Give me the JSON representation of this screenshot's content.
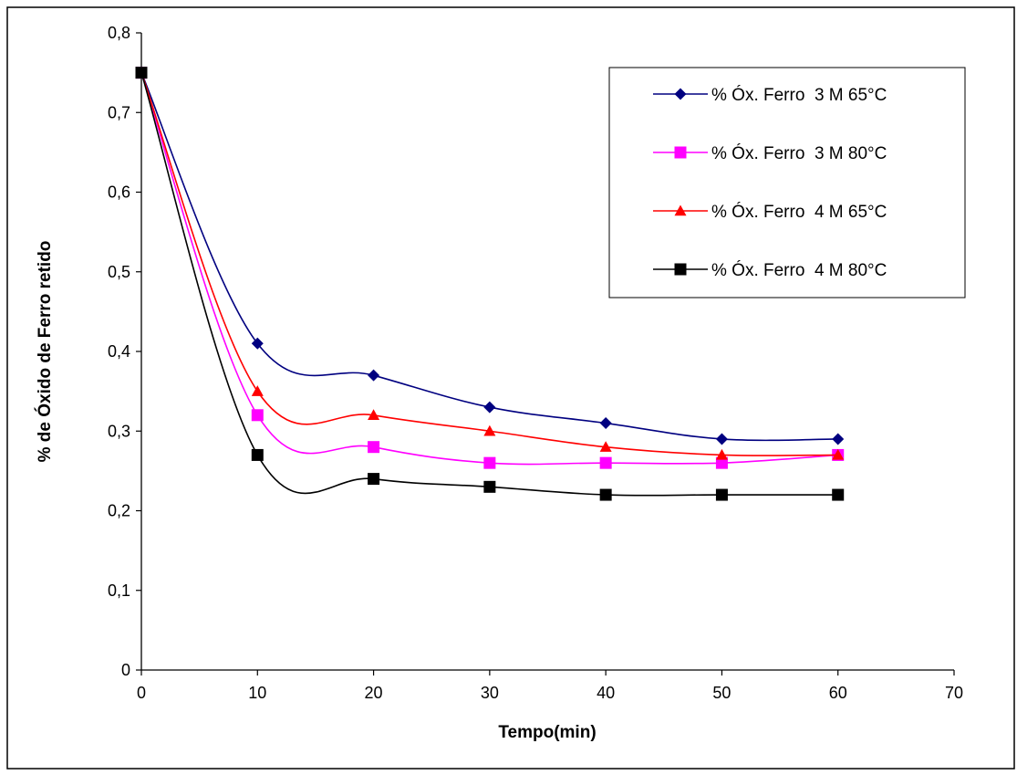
{
  "chart_data": {
    "type": "line",
    "title": "",
    "xlabel": "Tempo(min)",
    "ylabel": "% de Óxido de Ferro retido",
    "xlim": [
      0,
      70
    ],
    "ylim": [
      0,
      0.8
    ],
    "x_ticks": [
      0,
      10,
      20,
      30,
      40,
      50,
      60,
      70
    ],
    "y_ticks": [
      0,
      0.1,
      0.2,
      0.3,
      0.4,
      0.5,
      0.6,
      0.7,
      0.8
    ],
    "x_tick_labels": [
      "0",
      "10",
      "20",
      "30",
      "40",
      "50",
      "60",
      "70"
    ],
    "y_tick_labels": [
      "0",
      "0,1",
      "0,2",
      "0,3",
      "0,4",
      "0,5",
      "0,6",
      "0,7",
      "0,8"
    ],
    "grid": false,
    "legend_position": "top-right",
    "x": [
      0,
      10,
      20,
      30,
      40,
      50,
      60
    ],
    "series": [
      {
        "name": "% Óx. Ferro  3 M 65°C",
        "values": [
          0.75,
          0.41,
          0.37,
          0.33,
          0.31,
          0.29,
          0.29
        ],
        "color": "#000080",
        "marker": "diamond"
      },
      {
        "name": "% Óx. Ferro  3 M 80°C",
        "values": [
          0.75,
          0.32,
          0.28,
          0.26,
          0.26,
          0.26,
          0.27
        ],
        "color": "#ff00ff",
        "marker": "square"
      },
      {
        "name": "% Óx. Ferro  4 M 65°C",
        "values": [
          0.75,
          0.35,
          0.32,
          0.3,
          0.28,
          0.27,
          0.27
        ],
        "color": "#ff0000",
        "marker": "triangle"
      },
      {
        "name": "% Óx. Ferro  4 M 80°C",
        "values": [
          0.75,
          0.27,
          0.24,
          0.23,
          0.22,
          0.22,
          0.22
        ],
        "color": "#000000",
        "marker": "square"
      }
    ]
  }
}
